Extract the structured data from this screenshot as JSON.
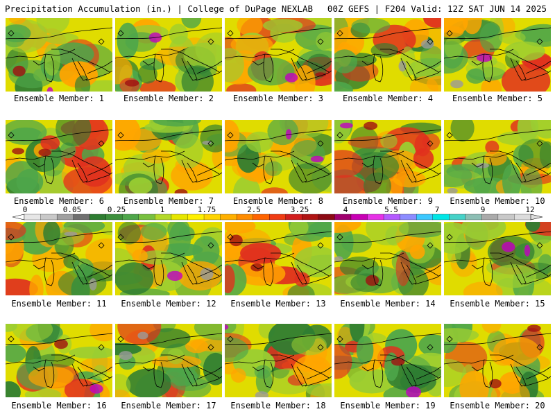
{
  "header": {
    "left_title": "Precipitation Accumulation (in.) | College of DuPage NEXLAB",
    "right_title": "00Z GEFS | F204 Valid: 12Z SAT JUN 14 2025"
  },
  "colorbar": {
    "labels": [
      "0",
      "0.05",
      "0.25",
      "1",
      "1.75",
      "2.5",
      "3.25",
      "4",
      "5.5",
      "7",
      "9",
      "12"
    ],
    "colors": [
      "#e6e6e6",
      "#c8c8c8",
      "#a0a0a0",
      "#707070",
      "#2e7d32",
      "#3c8f3c",
      "#4ea64a",
      "#78c040",
      "#b4d92a",
      "#e6e600",
      "#fff000",
      "#ffd400",
      "#ffb000",
      "#ff8c00",
      "#ff6400",
      "#f03c14",
      "#d21e1e",
      "#b01414",
      "#8c0a14",
      "#a0006e",
      "#c800b4",
      "#e632e6",
      "#b45aff",
      "#8c8cff",
      "#3cc8ff",
      "#00e6e6",
      "#46d2c8",
      "#8cbeb4",
      "#aaaaaa",
      "#c8c8c8",
      "#dcdcdc"
    ]
  },
  "members": [
    {
      "label": "Ensemble Member: 1"
    },
    {
      "label": "Ensemble Member: 2"
    },
    {
      "label": "Ensemble Member: 3"
    },
    {
      "label": "Ensemble Member: 4"
    },
    {
      "label": "Ensemble Member: 5"
    },
    {
      "label": "Ensemble Member: 6"
    },
    {
      "label": "Ensemble Member: 7"
    },
    {
      "label": "Ensemble Member: 8"
    },
    {
      "label": "Ensemble Member: 9"
    },
    {
      "label": "Ensemble Member: 10"
    },
    {
      "label": "Ensemble Member: 11"
    },
    {
      "label": "Ensemble Member: 12"
    },
    {
      "label": "Ensemble Member: 13"
    },
    {
      "label": "Ensemble Member: 14"
    },
    {
      "label": "Ensemble Member: 15"
    },
    {
      "label": "Ensemble Member: 16"
    },
    {
      "label": "Ensemble Member: 17"
    },
    {
      "label": "Ensemble Member: 18"
    },
    {
      "label": "Ensemble Member: 19"
    },
    {
      "label": "Ensemble Member: 20"
    }
  ],
  "map_colors": {
    "base": "#e0dc00",
    "green": "#4ea64a",
    "dark_green": "#2e7d32",
    "light_green": "#9acd32",
    "orange": "#ffa500",
    "red": "#e0301e",
    "dark_red": "#a01010",
    "magenta": "#c000c0",
    "gray": "#9a9a9a",
    "coast": "#000000"
  }
}
